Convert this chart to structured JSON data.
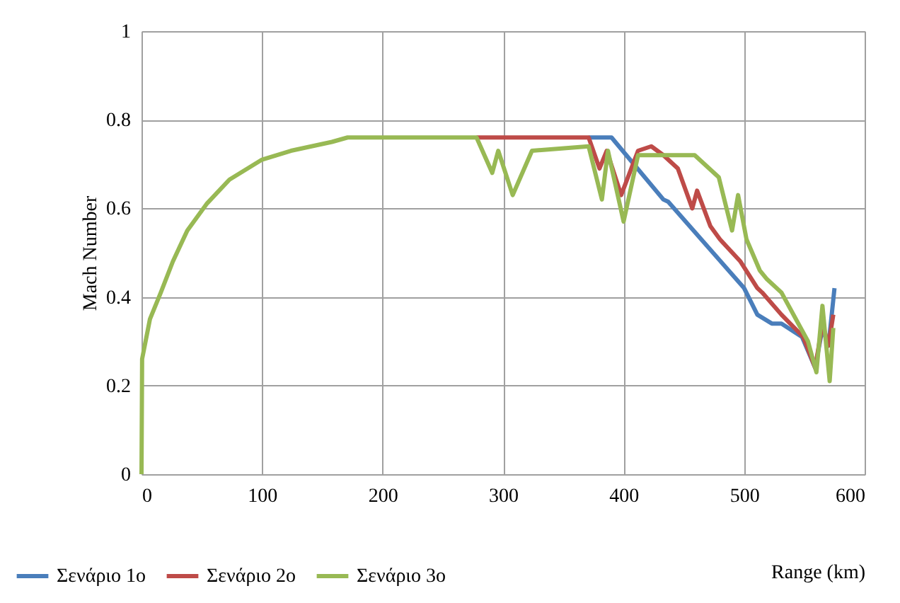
{
  "chart_data": {
    "type": "line",
    "xlabel": "Range (km)",
    "ylabel": "Mach Number",
    "xlim": [
      0,
      600
    ],
    "xticks": [
      0,
      100,
      200,
      300,
      400,
      500,
      600
    ],
    "ylim": [
      0,
      1
    ],
    "yticks": [
      0,
      0.2,
      0.4,
      0.6,
      0.8,
      1
    ],
    "grid": true,
    "legend": "bottom",
    "series": [
      {
        "name": "Σενάριο 1ο",
        "color": "#4a7ebb",
        "x": [
          371,
          390,
          433,
          437,
          500,
          511,
          523,
          531,
          548,
          559,
          565,
          570,
          575
        ],
        "values": [
          0.76,
          0.76,
          0.62,
          0.615,
          0.42,
          0.36,
          0.34,
          0.34,
          0.31,
          0.24,
          0.33,
          0.29,
          0.42
        ]
      },
      {
        "name": "Σενάριο 2ο",
        "color": "#be4b48",
        "x": [
          278,
          300,
          371,
          380,
          386,
          398,
          412,
          423,
          433,
          445,
          457,
          461,
          472,
          480,
          497,
          511,
          515,
          531,
          549,
          559,
          565,
          570,
          574
        ],
        "values": [
          0.76,
          0.76,
          0.76,
          0.69,
          0.73,
          0.63,
          0.73,
          0.74,
          0.72,
          0.69,
          0.6,
          0.64,
          0.56,
          0.53,
          0.48,
          0.42,
          0.41,
          0.36,
          0.31,
          0.24,
          0.34,
          0.29,
          0.36
        ]
      },
      {
        "name": "Σενάριο 3ο",
        "color": "#98b954",
        "x": [
          0,
          0.5,
          7,
          16,
          26,
          38,
          54,
          73,
          100,
          124,
          158,
          171,
          200,
          278,
          291,
          296,
          308,
          324,
          371,
          382,
          387,
          400,
          412,
          459,
          479,
          490,
          495,
          502,
          513,
          519,
          531,
          553,
          560,
          565,
          571,
          574
        ],
        "values": [
          0,
          0.26,
          0.35,
          0.41,
          0.48,
          0.55,
          0.61,
          0.665,
          0.71,
          0.73,
          0.75,
          0.76,
          0.76,
          0.76,
          0.68,
          0.73,
          0.63,
          0.73,
          0.74,
          0.62,
          0.73,
          0.57,
          0.72,
          0.72,
          0.67,
          0.55,
          0.63,
          0.53,
          0.46,
          0.44,
          0.41,
          0.3,
          0.23,
          0.38,
          0.21,
          0.33
        ]
      }
    ]
  }
}
